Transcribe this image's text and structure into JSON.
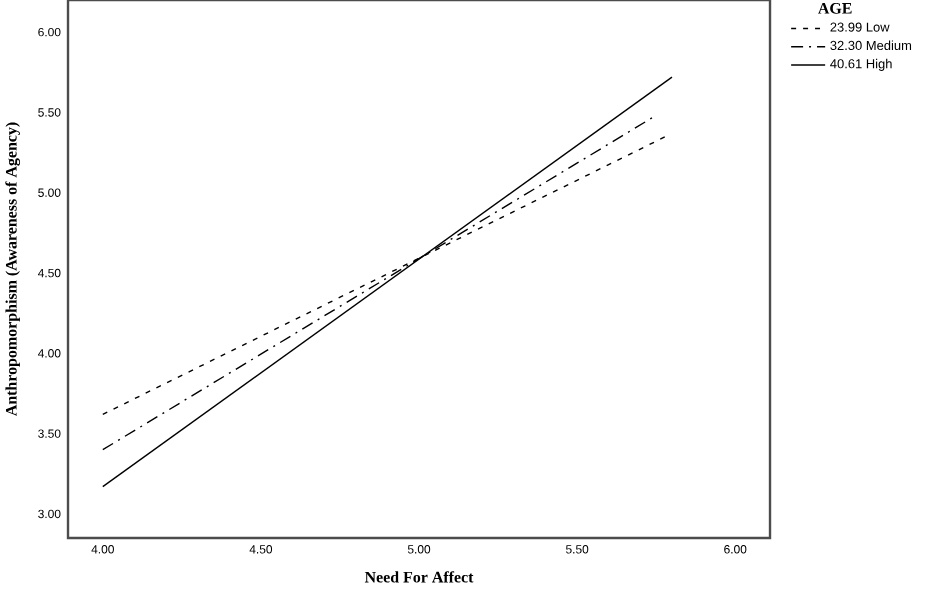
{
  "chart_data": {
    "type": "line",
    "xlabel": "Need For Affect",
    "ylabel": "Anthropomorphism (Awareness of Agency)",
    "legend_title": "AGE",
    "legend": "top right",
    "grid": false,
    "marker": "none",
    "xlim": [
      3.89,
      6.11
    ],
    "ylim": [
      2.85,
      6.2
    ],
    "xticks": [
      {
        "value": 4,
        "label": "4.00"
      },
      {
        "value": 4.5,
        "label": "4.50"
      },
      {
        "value": 5,
        "label": "5.00"
      },
      {
        "value": 5.5,
        "label": "5.50"
      },
      {
        "value": 6,
        "label": "6.00"
      }
    ],
    "yticks": [
      {
        "value": 3,
        "label": "3.00"
      },
      {
        "value": 3.5,
        "label": "3.50"
      },
      {
        "value": 4,
        "label": "4.00"
      },
      {
        "value": 4.5,
        "label": "4.50"
      },
      {
        "value": 5,
        "label": "5.00"
      },
      {
        "value": 5.5,
        "label": "5.50"
      },
      {
        "value": 6,
        "label": "6.00"
      }
    ],
    "series": [
      {
        "name": "23.99 Low",
        "color": "#000000",
        "line_style": "dashed",
        "x": [
          4.0,
          5.78
        ],
        "values": [
          3.62,
          5.35
        ]
      },
      {
        "name": "32.30 Medium",
        "color": "#000000",
        "line_style": "dashdot",
        "x": [
          4.0,
          5.74
        ],
        "values": [
          3.4,
          5.47
        ]
      },
      {
        "name": "40.61 High",
        "color": "#000000",
        "line_style": "solid",
        "x": [
          4.0,
          5.8
        ],
        "values": [
          3.17,
          5.72
        ]
      }
    ]
  }
}
